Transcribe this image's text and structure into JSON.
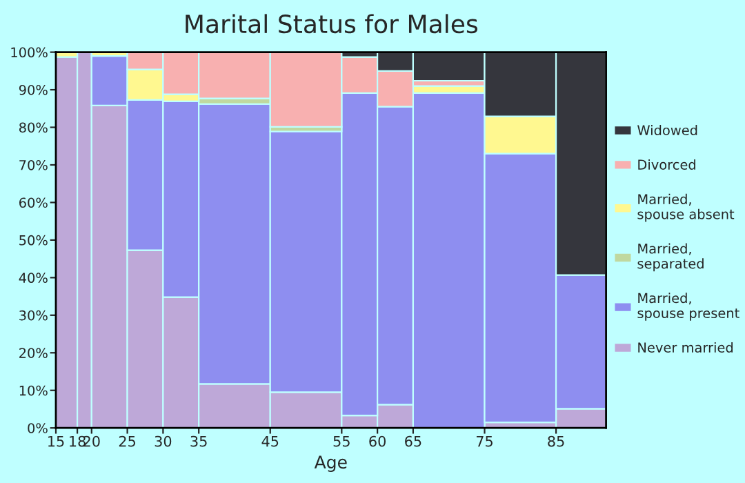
{
  "chart_data": {
    "type": "bar",
    "stacked": true,
    "title": "Marital Status for Males",
    "xlabel": "Age",
    "x": [
      16.5,
      19,
      22.5,
      27.5,
      32.5,
      40,
      50,
      57.5,
      62.5,
      70,
      80,
      88.5
    ],
    "xlim": [
      15,
      92
    ],
    "xticks": [
      15,
      18,
      20,
      25,
      30,
      35,
      45,
      55,
      60,
      65,
      75,
      85
    ],
    "ylim": [
      0,
      100
    ],
    "yticks": [
      {
        "value": 0,
        "label": "0%"
      },
      {
        "value": 10,
        "label": "10%"
      },
      {
        "value": 20,
        "label": "20%"
      },
      {
        "value": 30,
        "label": "30%"
      },
      {
        "value": 40,
        "label": "40%"
      },
      {
        "value": 50,
        "label": "50%"
      },
      {
        "value": 60,
        "label": "60%"
      },
      {
        "value": 70,
        "label": "70%"
      },
      {
        "value": 80,
        "label": "80%"
      },
      {
        "value": 90,
        "label": "90%"
      },
      {
        "value": 100,
        "label": "100%"
      }
    ],
    "legend": "right",
    "series": [
      {
        "name": "Never married",
        "color": "#bea8d8",
        "values": [
          98.7,
          100,
          85.8,
          47.3,
          34.8,
          11.7,
          9.5,
          3.3,
          6.2,
          null,
          1.5,
          5.1
        ]
      },
      {
        "name": "Married, spouse present",
        "color": "#8e8ef0",
        "values": [
          null,
          null,
          13.2,
          40.0,
          52.1,
          74.5,
          69.4,
          85.8,
          79.3,
          89.1,
          71.5,
          35.6
        ]
      },
      {
        "name": "Married, separated",
        "color": "#c0d8a0",
        "values": [
          null,
          null,
          null,
          null,
          null,
          1.5,
          1.2,
          null,
          null,
          null,
          null,
          null
        ]
      },
      {
        "name": "Married, spouse absent",
        "color": "#fff890",
        "values": [
          1.3,
          null,
          1.0,
          8.1,
          1.9,
          null,
          null,
          null,
          null,
          1.9,
          9.9,
          null
        ]
      },
      {
        "name": "Divorced",
        "color": "#f8b0b0",
        "values": [
          null,
          null,
          null,
          4.6,
          11.2,
          12.3,
          19.9,
          9.6,
          9.5,
          1.4,
          null,
          null
        ]
      },
      {
        "name": "Widowed",
        "color": "#35363d",
        "values": [
          null,
          null,
          null,
          null,
          null,
          null,
          null,
          1.3,
          5.0,
          7.6,
          17.1,
          59.3
        ]
      }
    ]
  }
}
